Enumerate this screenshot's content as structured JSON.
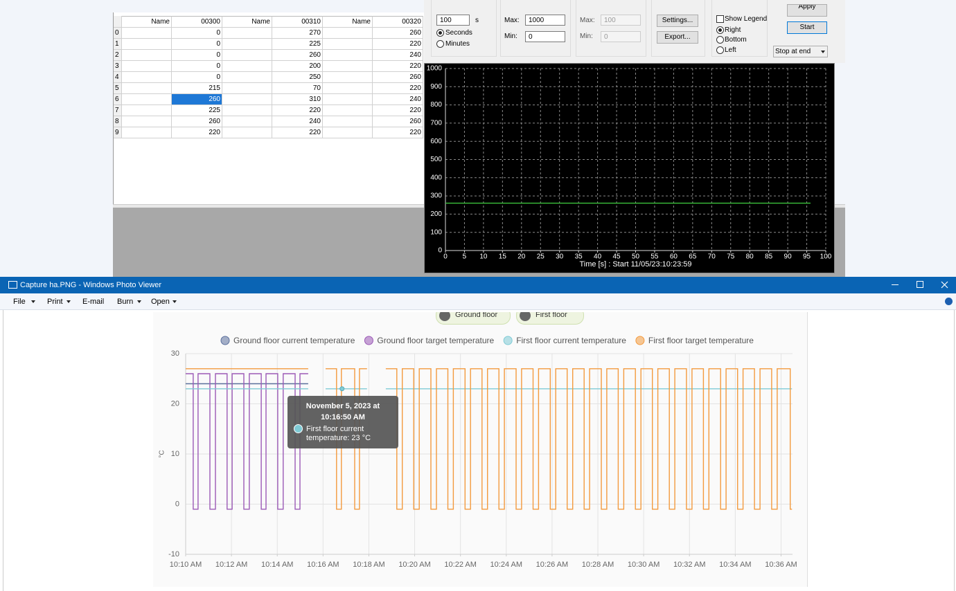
{
  "table": {
    "columns": [
      "Name",
      "00300",
      "Name",
      "00310",
      "Name",
      "00320"
    ],
    "rows": [
      {
        "index": 0,
        "values": [
          0,
          270,
          260
        ]
      },
      {
        "index": 1,
        "values": [
          0,
          225,
          220
        ]
      },
      {
        "index": 2,
        "values": [
          0,
          260,
          240
        ]
      },
      {
        "index": 3,
        "values": [
          0,
          200,
          220
        ]
      },
      {
        "index": 4,
        "values": [
          0,
          250,
          260
        ]
      },
      {
        "index": 5,
        "values": [
          215,
          70,
          220
        ]
      },
      {
        "index": 6,
        "values": [
          260,
          310,
          240
        ]
      },
      {
        "index": 7,
        "values": [
          225,
          220,
          220
        ]
      },
      {
        "index": 8,
        "values": [
          260,
          240,
          260
        ]
      },
      {
        "index": 9,
        "values": [
          220,
          220,
          220
        ]
      }
    ]
  },
  "controls": {
    "interval": 100,
    "interval_unit": "s",
    "units": [
      "Seconds",
      "Minutes"
    ],
    "max_label": "Max:",
    "min_label": "Min:",
    "max": 1000,
    "min": 0,
    "max2": 100,
    "min2": 0,
    "buttons": [
      "Settings...",
      "Export..."
    ],
    "show_legend": "Show Legend",
    "positions": [
      "Right",
      "Bottom",
      "Left"
    ],
    "apply": "Apply",
    "start": "Start",
    "stop_mode": "Stop at end"
  },
  "chart_data": [
    {
      "type": "line",
      "xlabel": "Time [s] : Start 11/05/23:10:23:59",
      "xlim": [
        0,
        100
      ],
      "xticks": [
        0,
        5,
        10,
        15,
        20,
        25,
        30,
        35,
        40,
        45,
        50,
        55,
        60,
        65,
        70,
        75,
        80,
        85,
        90,
        95,
        100
      ],
      "ylim": [
        0,
        1000
      ],
      "yticks": [
        0,
        100,
        200,
        300,
        400,
        500,
        600,
        700,
        800,
        900,
        1000
      ],
      "grid": true,
      "series": [
        {
          "color": "#3cc43c",
          "x": [
            0,
            96
          ],
          "values": [
            260,
            260
          ]
        }
      ]
    },
    {
      "type": "step",
      "ylabel": "°C",
      "filters": [
        "Ground floor",
        "First floor"
      ],
      "xlim": [
        610,
        636.5
      ],
      "xticks": [
        {
          "value": 610,
          "label": "10:10 AM"
        },
        {
          "value": 612,
          "label": "10:12 AM"
        },
        {
          "value": 614,
          "label": "10:14 AM"
        },
        {
          "value": 616,
          "label": "10:16 AM"
        },
        {
          "value": 618,
          "label": "10:18 AM"
        },
        {
          "value": 620,
          "label": "10:20 AM"
        },
        {
          "value": 622,
          "label": "10:22 AM"
        },
        {
          "value": 624,
          "label": "10:24 AM"
        },
        {
          "value": 626,
          "label": "10:26 AM"
        },
        {
          "value": 628,
          "label": "10:28 AM"
        },
        {
          "value": 630,
          "label": "10:30 AM"
        },
        {
          "value": 632,
          "label": "10:32 AM"
        },
        {
          "value": 634,
          "label": "10:34 AM"
        },
        {
          "value": 636,
          "label": "10:36 AM"
        }
      ],
      "ylim": [
        -10,
        30
      ],
      "yticks": [
        -10,
        0,
        10,
        20,
        30
      ],
      "grid": true,
      "tooltip": {
        "title": "November 5, 2023 at 10:16:50 AM",
        "label": "First floor current temperature: 23 °C",
        "x": 616.83,
        "value": 23
      },
      "series": [
        {
          "name": "Ground floor current temperature",
          "color": "#5b6f9c",
          "x": [
            610,
            615.35
          ],
          "values": [
            24,
            24
          ]
        },
        {
          "name": "Ground floor target temperature",
          "color": "#9b59b6",
          "x": [
            610,
            610.33,
            610.54,
            611.06,
            611.3,
            611.81,
            612.03,
            612.54,
            612.78,
            613.3,
            613.51,
            614.02,
            614.26,
            614.78,
            614.99,
            615.35
          ],
          "values": [
            26,
            -1,
            26,
            -1,
            26,
            -1,
            26,
            -1,
            26,
            -1,
            26,
            -1,
            26,
            -1,
            26,
            26
          ]
        },
        {
          "name": "First floor current temperature",
          "color": "#7fcbd6",
          "x": [
            610,
            615.35,
            615.5,
            616.11,
            617.92,
            618.3,
            618.74,
            636.48
          ],
          "values": [
            23,
            23,
            null,
            23,
            23,
            null,
            23,
            23
          ]
        },
        {
          "name": "First floor target temperature",
          "color": "#f39a3e",
          "x": [
            610,
            615.35,
            615.5,
            616.11,
            616.59,
            616.8,
            617.38,
            617.59,
            617.92,
            618.3,
            618.74,
            619.22,
            619.46,
            619.96,
            620.2,
            620.71,
            620.95,
            621.45,
            621.69,
            622.2,
            622.44,
            622.94,
            623.18,
            623.68,
            623.92,
            624.43,
            624.67,
            625.17,
            625.41,
            625.92,
            626.16,
            626.66,
            626.9,
            627.4,
            627.64,
            628.15,
            628.39,
            628.89,
            629.13,
            629.64,
            629.88,
            630.38,
            630.62,
            631.12,
            631.36,
            631.87,
            632.11,
            632.61,
            632.85,
            633.36,
            633.6,
            634.1,
            634.34,
            634.84,
            635.08,
            635.59,
            635.83,
            636.4,
            636.48
          ],
          "values": [
            27,
            27,
            null,
            27,
            -1,
            27,
            -1,
            27,
            27,
            null,
            27,
            -1,
            27,
            -1,
            27,
            -1,
            27,
            -1,
            27,
            -1,
            27,
            -1,
            27,
            -1,
            27,
            -1,
            27,
            -1,
            27,
            -1,
            27,
            -1,
            27,
            -1,
            27,
            -1,
            27,
            -1,
            27,
            -1,
            27,
            -1,
            27,
            -1,
            27,
            -1,
            27,
            -1,
            27,
            -1,
            27,
            -1,
            27,
            -1,
            27,
            -1,
            27,
            -1,
            -1
          ]
        }
      ]
    }
  ],
  "photo_viewer": {
    "title": "Capture ha.PNG - Windows Photo Viewer",
    "menu": [
      "File",
      "Print",
      "E-mail",
      "Burn",
      "Open"
    ]
  }
}
